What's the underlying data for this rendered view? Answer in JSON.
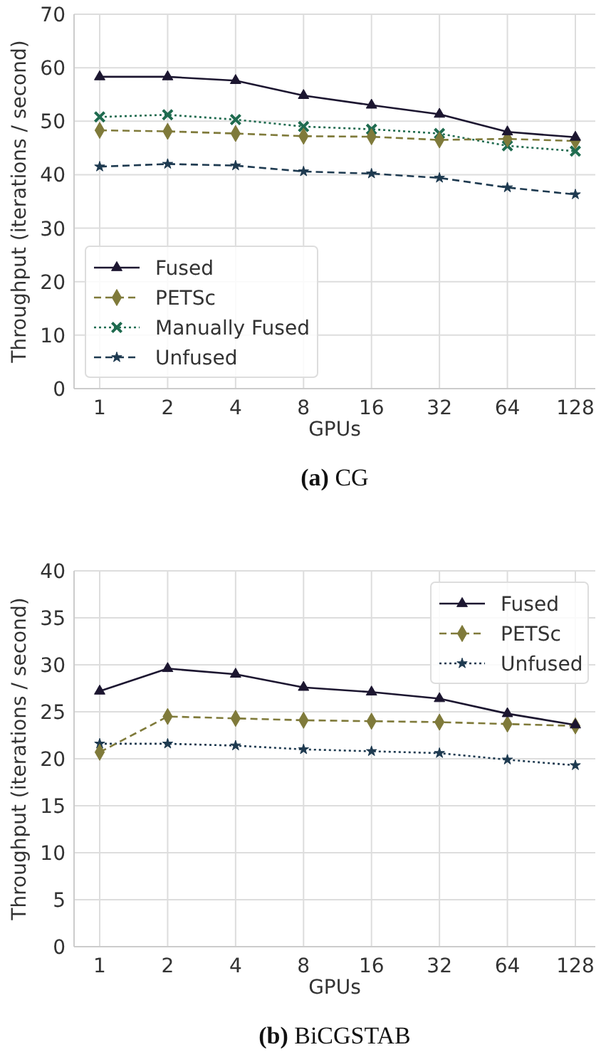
{
  "chart_data": [
    {
      "type": "line",
      "title": "(a) CG",
      "xlabel": "GPUs",
      "ylabel": "Throughput (iterations / second)",
      "categories": [
        "1",
        "2",
        "4",
        "8",
        "16",
        "32",
        "64",
        "128"
      ],
      "ylim": [
        0,
        70
      ],
      "yticks": [
        0,
        10,
        20,
        30,
        40,
        50,
        60,
        70
      ],
      "grid": true,
      "legend": "bottom left",
      "series": [
        {
          "name": "Fused",
          "color": "#1c1630",
          "marker": "triangle",
          "line_style": "solid",
          "values": [
            58.3,
            58.3,
            57.6,
            54.8,
            53,
            51.3,
            48,
            47
          ]
        },
        {
          "name": "PETSc",
          "color": "#7f7a3a",
          "marker": "diamond",
          "line_style": "dashed",
          "values": [
            48.3,
            48.1,
            47.7,
            47.2,
            47.1,
            46.5,
            46.7,
            46.3
          ]
        },
        {
          "name": "Manually Fused",
          "color": "#1f6b4f",
          "marker": "cross",
          "line_style": "dotted",
          "values": [
            50.8,
            51.2,
            50.3,
            49,
            48.5,
            47.7,
            45.4,
            44.4
          ]
        },
        {
          "name": "Unfused",
          "color": "#1e3a50",
          "marker": "star",
          "line_style": "dashed",
          "values": [
            41.5,
            42,
            41.7,
            40.6,
            40.2,
            39.4,
            37.6,
            36.3
          ]
        }
      ]
    },
    {
      "type": "line",
      "title": "(b) BiCGSTAB",
      "xlabel": "GPUs",
      "ylabel": "Throughput (iterations / second)",
      "categories": [
        "1",
        "2",
        "4",
        "8",
        "16",
        "32",
        "64",
        "128"
      ],
      "ylim": [
        0,
        40
      ],
      "yticks": [
        0,
        5,
        10,
        15,
        20,
        25,
        30,
        35,
        40
      ],
      "grid": true,
      "legend": "top right",
      "series": [
        {
          "name": "Fused",
          "color": "#1c1630",
          "marker": "triangle",
          "line_style": "solid",
          "values": [
            27.2,
            29.6,
            29,
            27.6,
            27.1,
            26.4,
            24.8,
            23.6
          ]
        },
        {
          "name": "PETSc",
          "color": "#7f7a3a",
          "marker": "diamond",
          "line_style": "dashed",
          "values": [
            20.7,
            24.5,
            24.3,
            24.1,
            24,
            23.9,
            23.7,
            23.5
          ]
        },
        {
          "name": "Unfused",
          "color": "#1e3a50",
          "marker": "star",
          "line_style": "dotted",
          "values": [
            21.6,
            21.6,
            21.4,
            21,
            20.8,
            20.6,
            19.9,
            19.3
          ]
        }
      ]
    }
  ]
}
